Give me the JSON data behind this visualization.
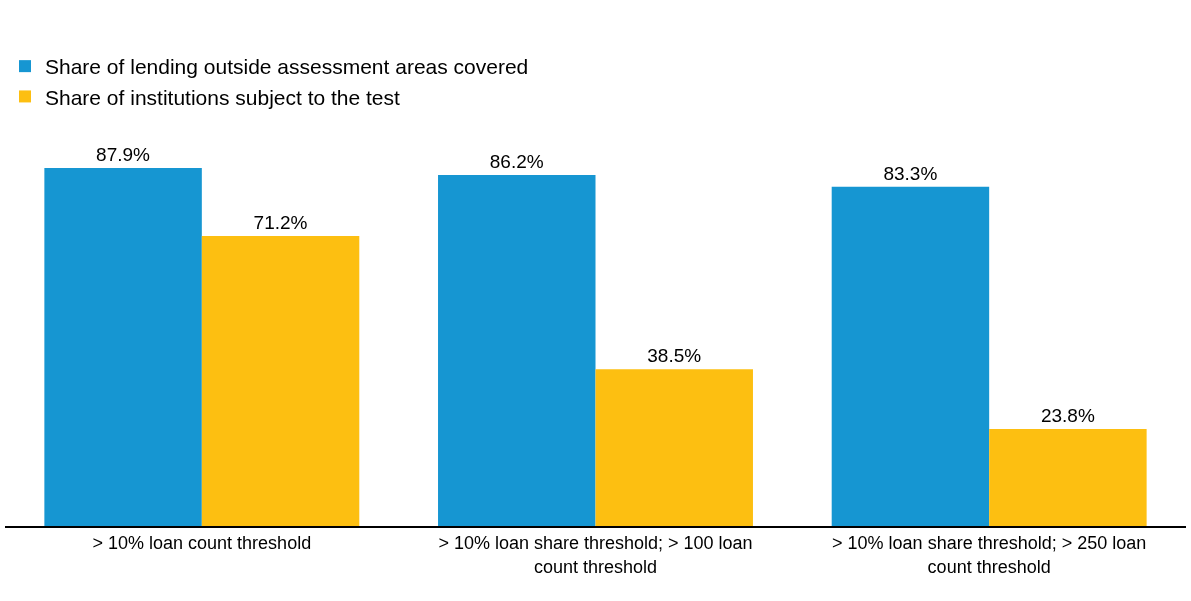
{
  "chart_data": {
    "type": "bar",
    "categories": [
      "> 10% loan count threshold",
      "> 10% loan share threshold; > 100 loan count threshold",
      "> 10% loan share threshold; > 250 loan count threshold"
    ],
    "series": [
      {
        "name": "Share of lending outside assessment areas covered",
        "color": "#1696d2",
        "values": [
          87.9,
          86.2,
          83.3
        ],
        "value_labels": [
          "87.9%",
          "86.2%",
          "83.3%"
        ]
      },
      {
        "name": "Share of institutions subject to the test",
        "color": "#fdbf11",
        "values": [
          71.2,
          38.5,
          23.8
        ],
        "value_labels": [
          "71.2%",
          "38.5%",
          "23.8%"
        ]
      }
    ],
    "legend": "top left"
  }
}
